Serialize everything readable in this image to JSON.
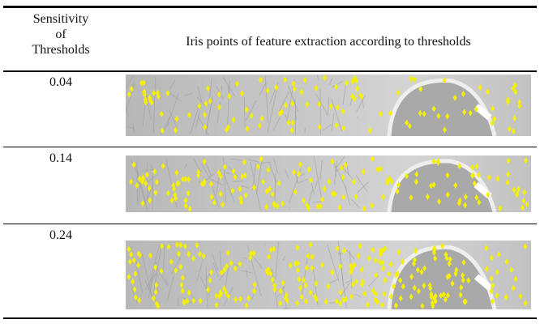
{
  "table": {
    "header": [
      "Sensitivity of Thresholds",
      "Iris points of feature extraction according to thresholds"
    ],
    "rows": [
      [
        "0.04"
      ],
      [
        "0.14"
      ],
      [
        "0.24"
      ]
    ]
  }
}
